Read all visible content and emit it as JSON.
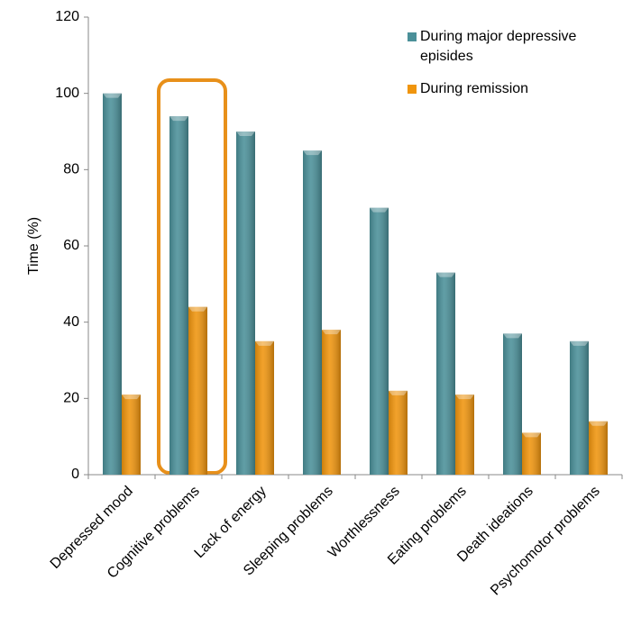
{
  "chart_data": {
    "type": "bar",
    "y_label": "Time (%)",
    "categories": [
      "Depressed mood",
      "Cognitive problems",
      "Lack of energy",
      "Sleeping problems",
      "Worthlessness",
      "Eating problems",
      "Death ideations",
      "Psychomotor problems"
    ],
    "series": [
      {
        "name": "During major depressive episides",
        "color": "#4b9099",
        "values": [
          100,
          94,
          90,
          85,
          70,
          53,
          37,
          35
        ]
      },
      {
        "name": "During remission",
        "color": "#f0950e",
        "values": [
          21,
          44,
          35,
          38,
          22,
          21,
          11,
          14
        ]
      }
    ],
    "ylim": [
      0,
      120
    ],
    "yticks": [
      0,
      20,
      40,
      60,
      80,
      100,
      120
    ],
    "grid": false
  }
}
